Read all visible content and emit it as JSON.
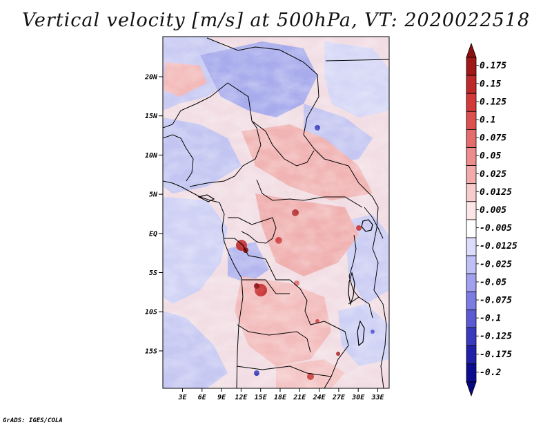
{
  "title": "Vertical velocity [m/s] at 500hPa, VT: 2020022518",
  "footer": "GrADS: IGES/COLA",
  "map": {
    "lat_labels": [
      "20N",
      "15N",
      "10N",
      "5N",
      "EQ",
      "5S",
      "10S",
      "15S"
    ],
    "lon_labels": [
      "3E",
      "6E",
      "9E",
      "12E",
      "15E",
      "18E",
      "21E",
      "24E",
      "27E",
      "30E",
      "33E"
    ]
  },
  "colorbar": {
    "levels": [
      "0.175",
      "0.15",
      "0.125",
      "0.1",
      "0.075",
      "0.05",
      "0.025",
      "0.0125",
      "0.005",
      "-0.005",
      "-0.0125",
      "-0.025",
      "-0.05",
      "-0.075",
      "-0.1",
      "-0.125",
      "-0.175",
      "-0.2"
    ],
    "colors": [
      "#a01818",
      "#be2a2a",
      "#d23a3a",
      "#dc5050",
      "#e46c6c",
      "#ec8c8c",
      "#f2aaaa",
      "#f8cccc",
      "#fde6e6",
      "#ffffff",
      "#dcdcfc",
      "#c0c0f6",
      "#a0a0ee",
      "#7c7ce2",
      "#5a5ad2",
      "#3a3abe",
      "#2020a8",
      "#0c0c90"
    ],
    "top_color": "#8c1010",
    "bottom_color": "#080880"
  }
}
